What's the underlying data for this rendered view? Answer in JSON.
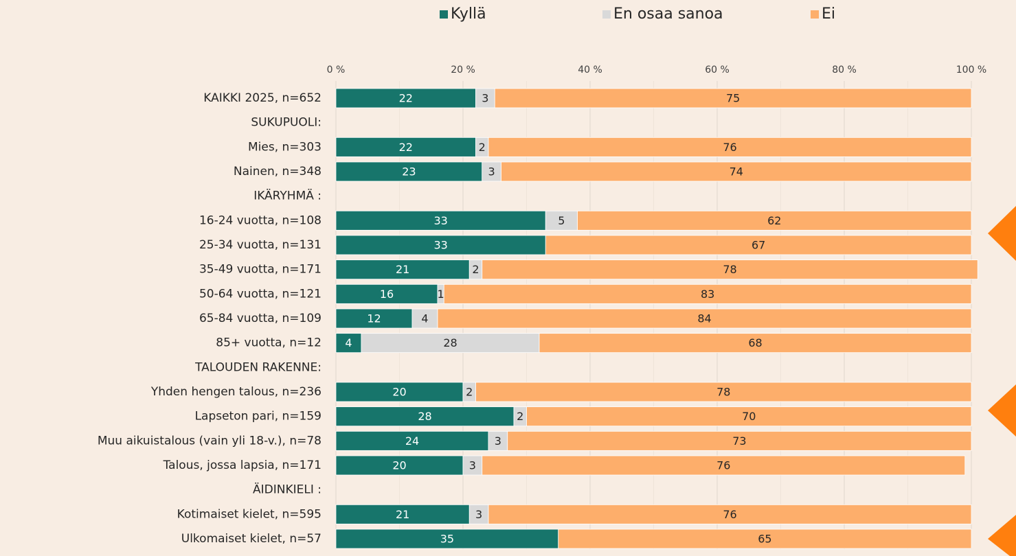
{
  "chart_data": {
    "type": "stacked_bar_horizontal",
    "categories": [
      "KAIKKI 2025, n=652",
      "SUKUPUOLI:",
      "Mies, n=303",
      "Nainen, n=348",
      "IKÄRYHMÄ :",
      "16-24 vuotta, n=108",
      "25-34 vuotta, n=131",
      "35-49 vuotta, n=171",
      "50-64 vuotta, n=121",
      "65-84 vuotta, n=109",
      "85+ vuotta, n=12",
      "TALOUDEN RAKENNE:",
      "Yhden hengen talous, n=236",
      "Lapseton pari, n=159",
      "Muu aikuistalous (vain yli 18-v.), n=78",
      "Talous, jossa lapsia, n=171",
      "ÄIDINKIELI :",
      "Kotimaiset kielet, n=595",
      "Ulkomaiset kielet, n=57"
    ],
    "series": [
      {
        "name": "Kyllä",
        "color": "#17756b",
        "values": [
          22,
          null,
          22,
          23,
          null,
          33,
          33,
          21,
          16,
          12,
          4,
          null,
          20,
          28,
          24,
          20,
          null,
          21,
          35
        ]
      },
      {
        "name": "En osaa sanoa",
        "color": "#d9d9d9",
        "values": [
          3,
          null,
          2,
          3,
          null,
          5,
          null,
          2,
          1,
          4,
          28,
          null,
          2,
          2,
          3,
          3,
          null,
          3,
          null
        ]
      },
      {
        "name": "Ei",
        "color": "#fdae6b",
        "values": [
          75,
          null,
          76,
          74,
          null,
          62,
          67,
          78,
          83,
          84,
          68,
          null,
          78,
          70,
          73,
          76,
          null,
          76,
          65
        ]
      }
    ],
    "xlim": [
      0,
      100
    ],
    "xticks": [
      {
        "value": 0,
        "label": "0 %"
      },
      {
        "value": 20,
        "label": "20 %"
      },
      {
        "value": 40,
        "label": "40 %"
      },
      {
        "value": 60,
        "label": "60 %"
      },
      {
        "value": 80,
        "label": "80 %"
      },
      {
        "value": 100,
        "label": "100 %"
      }
    ],
    "grid": true,
    "legend": "top"
  }
}
